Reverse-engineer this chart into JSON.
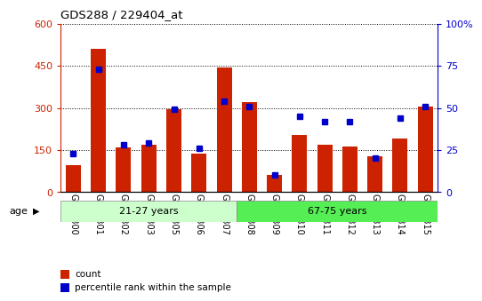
{
  "title": "GDS288 / 229404_at",
  "samples": [
    "GSM5300",
    "GSM5301",
    "GSM5302",
    "GSM5303",
    "GSM5305",
    "GSM5306",
    "GSM5307",
    "GSM5308",
    "GSM5309",
    "GSM5310",
    "GSM5311",
    "GSM5312",
    "GSM5313",
    "GSM5314",
    "GSM5315"
  ],
  "counts": [
    95,
    510,
    158,
    168,
    295,
    138,
    445,
    320,
    62,
    205,
    170,
    162,
    128,
    190,
    305
  ],
  "percentiles": [
    23,
    73,
    28,
    29,
    49,
    26,
    54,
    51,
    10,
    45,
    42,
    42,
    20,
    44,
    51
  ],
  "group1_label": "21-27 years",
  "group2_label": "67-75 years",
  "group1_count": 7,
  "group2_count": 8,
  "bar_color": "#cc2200",
  "dot_color": "#0000cc",
  "left_ylim": [
    0,
    600
  ],
  "right_ylim": [
    0,
    100
  ],
  "left_yticks": [
    0,
    150,
    300,
    450,
    600
  ],
  "right_yticks": [
    0,
    25,
    50,
    75,
    100
  ],
  "right_yticklabels": [
    "0",
    "25",
    "50",
    "75",
    "100%"
  ],
  "left_ycolor": "#cc2200",
  "right_ycolor": "#0000cc",
  "group1_bg": "#ccffcc",
  "group2_bg": "#55ee55",
  "legend_count_label": "count",
  "legend_pct_label": "percentile rank within the sample"
}
